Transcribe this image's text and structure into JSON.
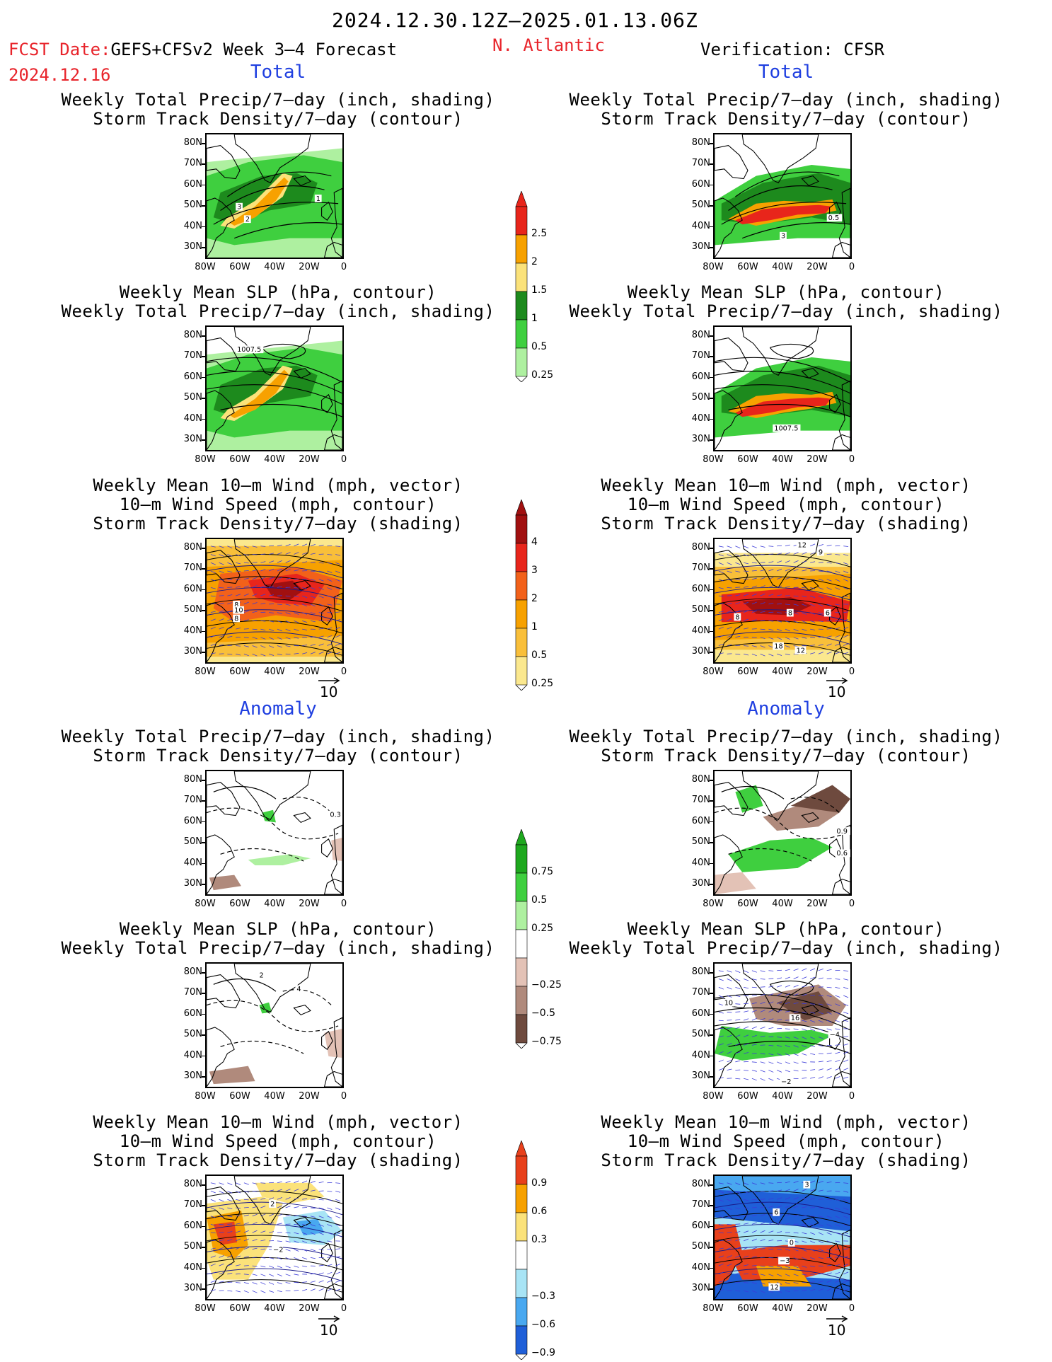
{
  "header": {
    "period": "2024.12.30.12Z—2025.01.13.06Z",
    "fcst_prefix": "FCST Date:",
    "model": "GEFS+CFSv2 Week 3—4 Forecast",
    "fcst_date": "2024.12.16",
    "region": "N. Atlantic",
    "verification": "Verification: CFSR"
  },
  "sections": {
    "total_left": "Total",
    "total_right": "Total",
    "anomaly_left": "Anomaly",
    "anomaly_right": "Anomaly"
  },
  "titles": {
    "precip_track": [
      "Weekly Total Precip/7—day (inch, shading)",
      "Storm Track Density/7—day (contour)"
    ],
    "slp_precip": [
      "Weekly Mean SLP (hPa, contour)",
      "Weekly Total Precip/7—day (inch, shading)"
    ],
    "wind_track": [
      "Weekly Mean 10—m Wind (mph, vector)",
      "10—m Wind Speed (mph, contour)",
      "Storm Track Density/7—day (shading)"
    ]
  },
  "axes": {
    "lat_ticks": [
      "80N",
      "70N",
      "60N",
      "50N",
      "40N",
      "30N"
    ],
    "lon_ticks": [
      "80W",
      "60W",
      "40W",
      "20W",
      "0"
    ]
  },
  "vector_ref": "10",
  "colorbars": [
    {
      "id": "precip_total",
      "labels": [
        "2.5",
        "2",
        "1.5",
        "1",
        "0.5",
        "0.25"
      ],
      "colors": [
        "#e8251b",
        "#f7a100",
        "#fbe27a",
        "#1d8a1d",
        "#3fcf3f",
        "#aef0a0"
      ]
    },
    {
      "id": "track_total",
      "labels": [
        "4",
        "3",
        "2",
        "1",
        "0.5",
        "0.25"
      ],
      "colors": [
        "#a11010",
        "#e8251b",
        "#f2611a",
        "#f7a100",
        "#f9bf3a",
        "#fbe88e"
      ]
    },
    {
      "id": "precip_anom",
      "labels": [
        "0.75",
        "0.5",
        "0.25",
        "−0.25",
        "−0.5",
        "−0.75"
      ],
      "colors": [
        "#1ea81e",
        "#3fcf3f",
        "#aef0a0",
        "#ffffff",
        "#e3c2b6",
        "#b08a7c",
        "#6e4a3e"
      ]
    },
    {
      "id": "track_anom",
      "labels": [
        "0.9",
        "0.6",
        "0.3",
        "−0.3",
        "−0.6",
        "−0.9"
      ],
      "colors": [
        "#e8401b",
        "#f7a100",
        "#fbe27a",
        "#ffffff",
        "#a8e4f5",
        "#49a8f0",
        "#1f5fd8"
      ]
    }
  ],
  "panels": [
    {
      "id": "p1",
      "labels": [
        "3",
        "2",
        "1"
      ]
    },
    {
      "id": "p2",
      "labels": [
        "3",
        "0.5"
      ]
    },
    {
      "id": "p3",
      "labels": [
        "1007.5"
      ]
    },
    {
      "id": "p4",
      "labels": [
        "1007.5"
      ]
    },
    {
      "id": "p5",
      "labels": [
        "8",
        "10",
        "8"
      ]
    },
    {
      "id": "p6",
      "labels": [
        "12",
        "9",
        "8",
        "8",
        "6",
        "18",
        "12"
      ]
    },
    {
      "id": "p7",
      "labels": [
        "0.3"
      ]
    },
    {
      "id": "p8",
      "labels": [
        "0.9",
        "0.6"
      ]
    },
    {
      "id": "p9",
      "labels": [
        "2",
        "4"
      ]
    },
    {
      "id": "p10",
      "labels": [
        "10",
        "16",
        "−4",
        "−2"
      ]
    },
    {
      "id": "p11",
      "labels": [
        "2",
        "−2"
      ]
    },
    {
      "id": "p12",
      "labels": [
        "3",
        "6",
        "0",
        "−3",
        "12"
      ]
    }
  ],
  "chart_data": [
    {
      "type": "heatmap",
      "id": "p1",
      "title": "Weekly Total Precip/7—day (inch, shading) / Storm Track Density/7—day (contour)",
      "source": "GEFS+CFSv2 Week 3—4 Forecast",
      "field": "Total",
      "lon_range": [
        -80,
        0
      ],
      "lat_range": [
        25,
        85
      ]
    },
    {
      "type": "heatmap",
      "id": "p2",
      "title": "Weekly Total Precip/7—day (inch, shading) / Storm Track Density/7—day (contour)",
      "source": "CFSR",
      "field": "Total",
      "lon_range": [
        -80,
        0
      ],
      "lat_range": [
        25,
        85
      ]
    },
    {
      "type": "heatmap",
      "id": "p3",
      "title": "Weekly Mean SLP (hPa, contour) / Weekly Total Precip/7—day (inch, shading)",
      "source": "GEFS+CFSv2 Week 3—4 Forecast",
      "field": "Total",
      "lon_range": [
        -80,
        0
      ],
      "lat_range": [
        25,
        85
      ]
    },
    {
      "type": "heatmap",
      "id": "p4",
      "title": "Weekly Mean SLP (hPa, contour) / Weekly Total Precip/7—day (inch, shading)",
      "source": "CFSR",
      "field": "Total",
      "lon_range": [
        -80,
        0
      ],
      "lat_range": [
        25,
        85
      ]
    },
    {
      "type": "heatmap",
      "id": "p5",
      "title": "Weekly Mean 10—m Wind (mph, vector) / 10—m Wind Speed (mph, contour) / Storm Track Density/7—day (shading)",
      "source": "GEFS+CFSv2 Week 3—4 Forecast",
      "field": "Total",
      "lon_range": [
        -80,
        0
      ],
      "lat_range": [
        25,
        85
      ]
    },
    {
      "type": "heatmap",
      "id": "p6",
      "title": "Weekly Mean 10—m Wind (mph, vector) / 10—m Wind Speed (mph, contour) / Storm Track Density/7—day (shading)",
      "source": "CFSR",
      "field": "Total",
      "lon_range": [
        -80,
        0
      ],
      "lat_range": [
        25,
        85
      ]
    },
    {
      "type": "heatmap",
      "id": "p7",
      "title": "Weekly Total Precip/7—day (inch, shading) / Storm Track Density/7—day (contour)",
      "source": "GEFS+CFSv2 Week 3—4 Forecast",
      "field": "Anomaly",
      "lon_range": [
        -80,
        0
      ],
      "lat_range": [
        25,
        85
      ]
    },
    {
      "type": "heatmap",
      "id": "p8",
      "title": "Weekly Total Precip/7—day (inch, shading) / Storm Track Density/7—day (contour)",
      "source": "CFSR",
      "field": "Anomaly",
      "lon_range": [
        -80,
        0
      ],
      "lat_range": [
        25,
        85
      ]
    },
    {
      "type": "heatmap",
      "id": "p9",
      "title": "Weekly Mean SLP (hPa, contour) / Weekly Total Precip/7—day (inch, shading)",
      "source": "GEFS+CFSv2 Week 3—4 Forecast",
      "field": "Anomaly",
      "lon_range": [
        -80,
        0
      ],
      "lat_range": [
        25,
        85
      ]
    },
    {
      "type": "heatmap",
      "id": "p10",
      "title": "Weekly Mean SLP (hPa, contour) / Weekly Total Precip/7—day (inch, shading)",
      "source": "CFSR",
      "field": "Anomaly",
      "lon_range": [
        -80,
        0
      ],
      "lat_range": [
        25,
        85
      ]
    },
    {
      "type": "heatmap",
      "id": "p11",
      "title": "Weekly Mean 10—m Wind (mph, vector) / 10—m Wind Speed (mph, contour) / Storm Track Density/7—day (shading)",
      "source": "GEFS+CFSv2 Week 3—4 Forecast",
      "field": "Anomaly",
      "lon_range": [
        -80,
        0
      ],
      "lat_range": [
        25,
        85
      ]
    },
    {
      "type": "heatmap",
      "id": "p12",
      "title": "Weekly Mean 10—m Wind (mph, vector) / 10—m Wind Speed (mph, contour) / Storm Track Density/7—day (shading)",
      "source": "CFSR",
      "field": "Anomaly",
      "lon_range": [
        -80,
        0
      ],
      "lat_range": [
        25,
        85
      ]
    }
  ]
}
